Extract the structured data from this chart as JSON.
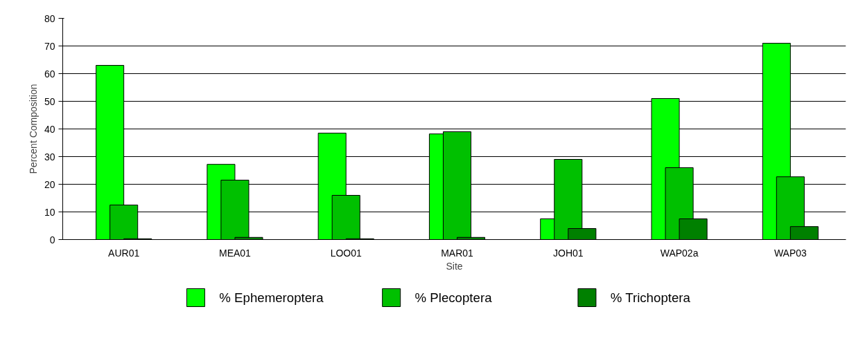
{
  "chart_data": {
    "type": "bar",
    "xlabel": "Site",
    "ylabel": "Percent Composition",
    "categories": [
      "AUR01",
      "MEA01",
      "LOO01",
      "MAR01",
      "JOH01",
      "WAP02a",
      "WAP03"
    ],
    "series": [
      {
        "name": "% Ephemeroptera",
        "color": "#00ff00",
        "values": [
          63,
          27.2,
          38.5,
          38.2,
          7.5,
          51,
          71
        ]
      },
      {
        "name": "% Plecoptera",
        "color": "#00c000",
        "values": [
          12.5,
          21.5,
          16,
          39,
          29,
          26,
          22.7
        ]
      },
      {
        "name": "% Trichoptera",
        "color": "#008000",
        "values": [
          0.3,
          0.8,
          0.3,
          0.8,
          4,
          7.5,
          4.7
        ]
      }
    ],
    "ylim": [
      0,
      80
    ],
    "yticks": [
      0,
      10,
      20,
      30,
      40,
      50,
      60,
      70,
      80
    ],
    "grid": "y",
    "legend": "bottom"
  }
}
